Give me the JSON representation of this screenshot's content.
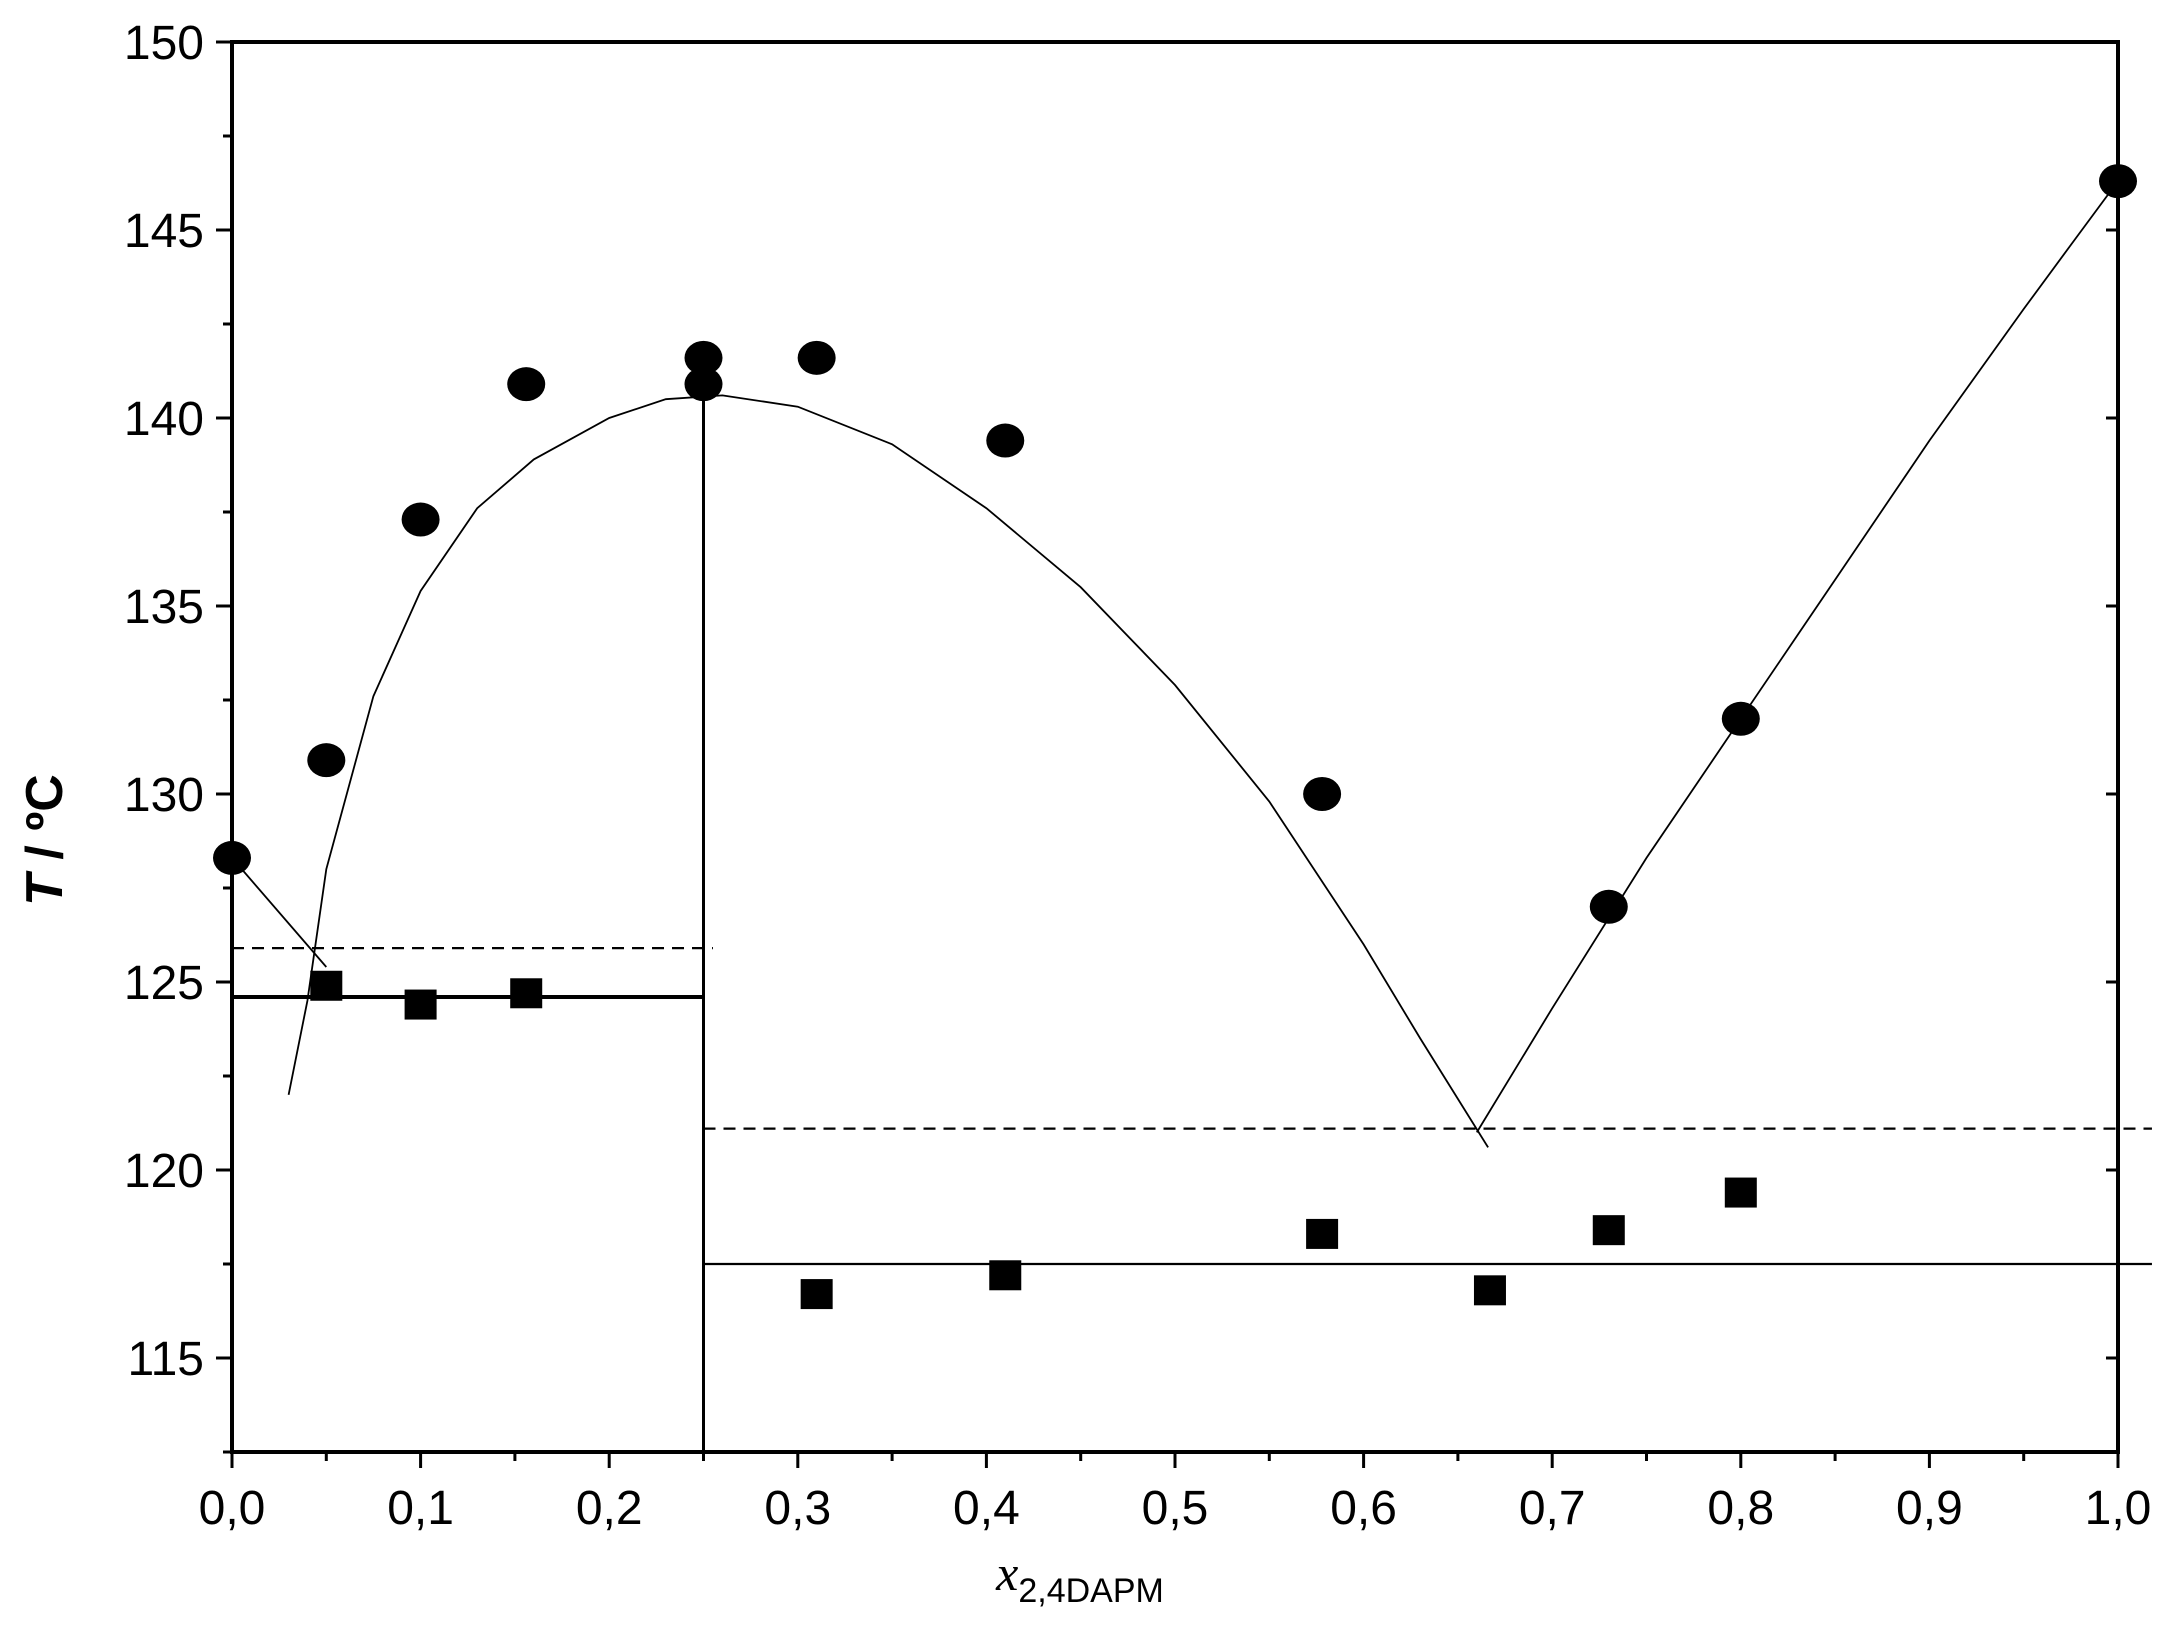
{
  "chart_data": {
    "type": "scatter",
    "xlabel": "x",
    "xlabel_subscript": "2,4DAPM",
    "ylabel_italic": "T",
    "ylabel_rest": " / ºC",
    "xlim": [
      0.0,
      1.0
    ],
    "ylim": [
      112.5,
      150
    ],
    "x_ticks": [
      {
        "value": 0.0,
        "label": "0,0"
      },
      {
        "value": 0.1,
        "label": "0,1"
      },
      {
        "value": 0.2,
        "label": "0,2"
      },
      {
        "value": 0.3,
        "label": "0,3"
      },
      {
        "value": 0.4,
        "label": "0,4"
      },
      {
        "value": 0.5,
        "label": "0,5"
      },
      {
        "value": 0.6,
        "label": "0,6"
      },
      {
        "value": 0.7,
        "label": "0,7"
      },
      {
        "value": 0.8,
        "label": "0,8"
      },
      {
        "value": 0.9,
        "label": "0,9"
      },
      {
        "value": 1.0,
        "label": "1,0"
      }
    ],
    "y_ticks": [
      {
        "value": 115,
        "label": "115"
      },
      {
        "value": 120,
        "label": "120"
      },
      {
        "value": 125,
        "label": "125"
      },
      {
        "value": 130,
        "label": "130"
      },
      {
        "value": 135,
        "label": "135"
      },
      {
        "value": 140,
        "label": "140"
      },
      {
        "value": 145,
        "label": "145"
      },
      {
        "value": 150,
        "label": "150"
      }
    ],
    "liquidus_points": [
      {
        "x": 0.0,
        "y": 128.3
      },
      {
        "x": 0.05,
        "y": 130.9
      },
      {
        "x": 0.1,
        "y": 137.3
      },
      {
        "x": 0.156,
        "y": 140.9
      },
      {
        "x": 0.25,
        "y": 141.6
      },
      {
        "x": 0.25,
        "y": 140.9
      },
      {
        "x": 0.31,
        "y": 141.6
      },
      {
        "x": 0.41,
        "y": 139.4
      },
      {
        "x": 0.578,
        "y": 130.0
      },
      {
        "x": 0.73,
        "y": 127.0
      },
      {
        "x": 0.8,
        "y": 132.0
      },
      {
        "x": 1.0,
        "y": 146.3
      }
    ],
    "solidus_points": [
      {
        "x": 0.05,
        "y": 124.9
      },
      {
        "x": 0.1,
        "y": 124.4
      },
      {
        "x": 0.156,
        "y": 124.7
      },
      {
        "x": 0.31,
        "y": 116.7
      },
      {
        "x": 0.41,
        "y": 117.2
      },
      {
        "x": 0.578,
        "y": 118.3
      },
      {
        "x": 0.667,
        "y": 116.8
      },
      {
        "x": 0.73,
        "y": 118.4
      },
      {
        "x": 0.8,
        "y": 119.4
      }
    ],
    "fit_curves": [
      {
        "style": "thin",
        "points": [
          [
            0.0,
            128.3
          ],
          [
            0.05,
            125.4
          ]
        ]
      },
      {
        "style": "thin",
        "points": [
          [
            0.03,
            122.0
          ],
          [
            0.04,
            124.5
          ],
          [
            0.05,
            128.0
          ],
          [
            0.075,
            132.6
          ],
          [
            0.1,
            135.4
          ],
          [
            0.13,
            137.6
          ],
          [
            0.16,
            138.9
          ],
          [
            0.2,
            140.0
          ],
          [
            0.23,
            140.5
          ],
          [
            0.26,
            140.6
          ],
          [
            0.3,
            140.3
          ],
          [
            0.35,
            139.3
          ],
          [
            0.4,
            137.6
          ],
          [
            0.45,
            135.5
          ],
          [
            0.5,
            132.9
          ],
          [
            0.55,
            129.8
          ],
          [
            0.6,
            126.0
          ],
          [
            0.63,
            123.5
          ],
          [
            0.666,
            120.6
          ]
        ]
      },
      {
        "style": "thin",
        "points": [
          [
            0.66,
            121.0
          ],
          [
            0.7,
            124.3
          ],
          [
            0.75,
            128.3
          ],
          [
            0.8,
            132.0
          ],
          [
            0.85,
            135.7
          ],
          [
            0.9,
            139.4
          ],
          [
            0.95,
            142.9
          ],
          [
            0.975,
            144.6
          ],
          [
            1.0,
            146.3
          ]
        ]
      }
    ],
    "reference_lines": [
      {
        "style": "solid-thick",
        "x1": 0.0,
        "x2": 0.25,
        "y": 124.6
      },
      {
        "style": "dashed",
        "x1": 0.0,
        "x2": 0.255,
        "y": 125.9
      },
      {
        "style": "solid",
        "x1": 0.25,
        "x2": 1.018,
        "y": 117.5
      },
      {
        "style": "dashed",
        "x1": 0.25,
        "x2": 1.018,
        "y": 121.1
      },
      {
        "style": "vertical",
        "x": 0.25,
        "y1": 112.5,
        "y2": 140.7
      }
    ],
    "legend": "none",
    "grid": false
  }
}
